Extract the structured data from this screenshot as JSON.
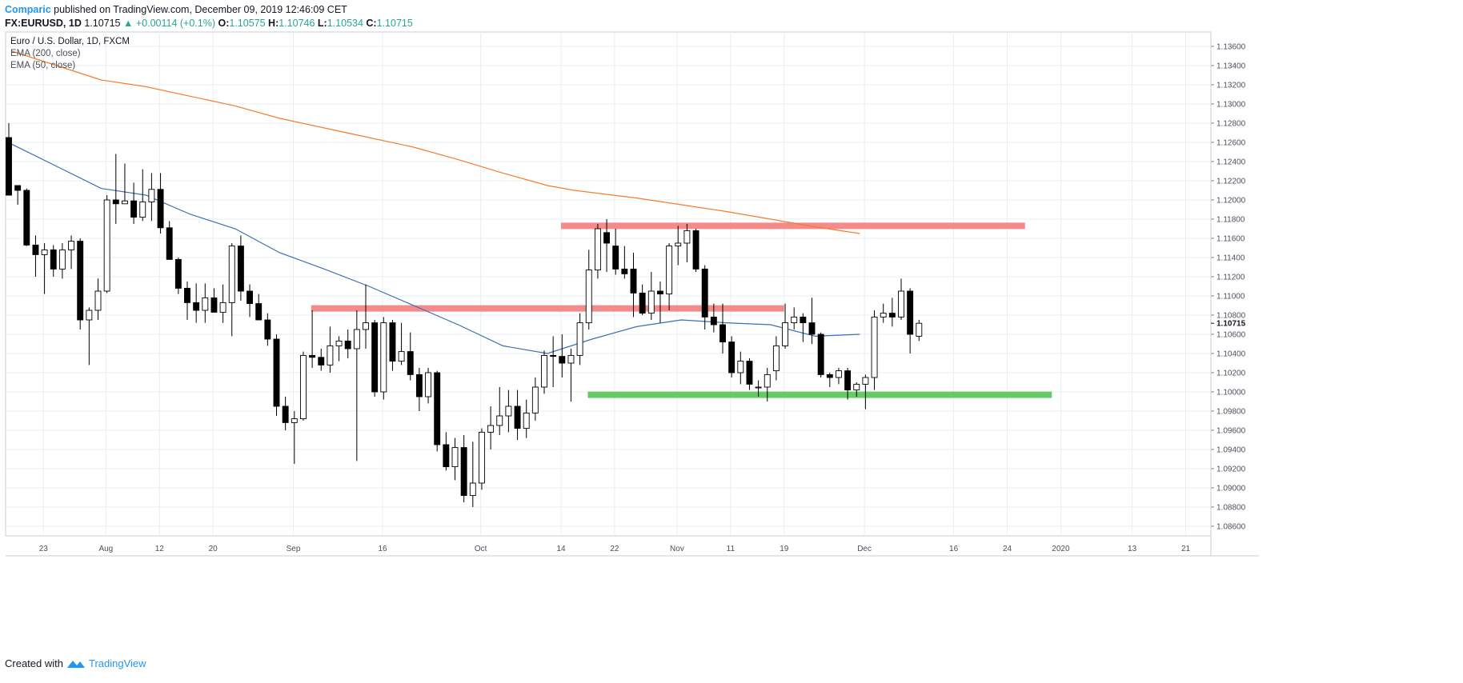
{
  "header": {
    "author": "Comparic",
    "published_text": "published on TradingView.com, December 09, 2019 12:46:09 CET",
    "symbol": "FX:EURUSD, 1D",
    "last": "1.10715",
    "change": "▲ +0.00114 (+0.1%)",
    "o_label": "O:",
    "o_value": "1.10575",
    "h_label": "H:",
    "h_value": "1.10746",
    "l_label": "L:",
    "l_value": "1.10534",
    "c_label": "C:",
    "c_value": "1.10715"
  },
  "legend": {
    "title": "Euro / U.S. Dollar, 1D, FXCM",
    "ema200": "EMA (200, close)",
    "ema50": "EMA (50, close)"
  },
  "footer": {
    "created_with": "Created with",
    "brand": "TradingView"
  },
  "colors": {
    "ema200": "#f57c2b",
    "ema50": "#3a6fb5",
    "resistance": "#f48484",
    "support": "#5ec75e",
    "grid": "#e8eef3",
    "candle_up_fill": "#ffffff",
    "candle_down_fill": "#000000"
  },
  "chart_data": {
    "type": "candlestick",
    "title": "Euro / U.S. Dollar, 1D, FXCM",
    "ylim": [
      1.085,
      1.1375
    ],
    "y_ticks": [
      "1.08600",
      "1.08800",
      "1.09000",
      "1.09200",
      "1.09400",
      "1.09600",
      "1.09800",
      "1.10000",
      "1.10200",
      "1.10400",
      "1.10600",
      "1.10800",
      "1.11000",
      "1.11200",
      "1.11400",
      "1.11600",
      "1.11800",
      "1.12000",
      "1.12200",
      "1.12400",
      "1.12600",
      "1.12800",
      "1.13000",
      "1.13200",
      "1.13400",
      "1.13600"
    ],
    "last_price_label": "1.10715",
    "x_ticks": [
      {
        "label": "23",
        "i": 2
      },
      {
        "label": "Aug",
        "i": 9
      },
      {
        "label": "12",
        "i": 15
      },
      {
        "label": "20",
        "i": 21
      },
      {
        "label": "Sep",
        "i": 30
      },
      {
        "label": "16",
        "i": 40
      },
      {
        "label": "Oct",
        "i": 51
      },
      {
        "label": "14",
        "i": 60
      },
      {
        "label": "22",
        "i": 66
      },
      {
        "label": "Nov",
        "i": 73
      },
      {
        "label": "11",
        "i": 79
      },
      {
        "label": "19",
        "i": 85
      },
      {
        "label": "Dec",
        "i": 94
      },
      {
        "label": "16",
        "i": 104
      },
      {
        "label": "24",
        "i": 110
      },
      {
        "label": "2020",
        "i": 116
      },
      {
        "label": "13",
        "i": 124
      },
      {
        "label": "21",
        "i": 130
      }
    ],
    "candles": [
      [
        1.1265,
        1.128,
        1.1205,
        1.1205
      ],
      [
        1.1215,
        1.1215,
        1.1195,
        1.121
      ],
      [
        1.121,
        1.1212,
        1.1152,
        1.1153
      ],
      [
        1.1153,
        1.1163,
        1.112,
        1.1143
      ],
      [
        1.1143,
        1.1155,
        1.1102,
        1.1148
      ],
      [
        1.1148,
        1.1153,
        1.112,
        1.1128
      ],
      [
        1.1128,
        1.1155,
        1.1118,
        1.1148
      ],
      [
        1.1148,
        1.1163,
        1.1128,
        1.1157
      ],
      [
        1.1157,
        1.116,
        1.1065,
        1.1075
      ],
      [
        1.1075,
        1.1088,
        1.1028,
        1.1085
      ],
      [
        1.1085,
        1.1118,
        1.1075,
        1.1105
      ],
      [
        1.1105,
        1.1205,
        1.1103,
        1.12
      ],
      [
        1.12,
        1.1248,
        1.1175,
        1.1196
      ],
      [
        1.1196,
        1.1238,
        1.1198,
        1.1199
      ],
      [
        1.1199,
        1.1218,
        1.1175,
        1.1182
      ],
      [
        1.1182,
        1.1232,
        1.1178,
        1.1198
      ],
      [
        1.1198,
        1.1228,
        1.1178,
        1.1211
      ],
      [
        1.1211,
        1.1228,
        1.1165,
        1.1171
      ],
      [
        1.1171,
        1.1178,
        1.1138,
        1.1138
      ],
      [
        1.1138,
        1.114,
        1.1102,
        1.1108
      ],
      [
        1.1108,
        1.1115,
        1.1075,
        1.1093
      ],
      [
        1.1093,
        1.1113,
        1.1072,
        1.1085
      ],
      [
        1.1085,
        1.1113,
        1.1072,
        1.1098
      ],
      [
        1.1098,
        1.1108,
        1.1085,
        1.1083
      ],
      [
        1.1083,
        1.1112,
        1.1072,
        1.1093
      ],
      [
        1.1093,
        1.1155,
        1.1058,
        1.1152
      ],
      [
        1.1152,
        1.1163,
        1.1095,
        1.1105
      ],
      [
        1.1105,
        1.1112,
        1.1078,
        1.1092
      ],
      [
        1.1092,
        1.1102,
        1.1075,
        1.1075
      ],
      [
        1.1075,
        1.1082,
        1.1048,
        1.1055
      ],
      [
        1.1055,
        1.106,
        1.0975,
        1.0985
      ],
      [
        1.0985,
        1.0995,
        1.096,
        1.0968
      ],
      [
        1.0968,
        1.098,
        1.0925,
        1.0972
      ],
      [
        1.0972,
        1.1042,
        1.097,
        1.1038
      ],
      [
        1.1038,
        1.1085,
        1.1025,
        1.1036
      ],
      [
        1.1036,
        1.1045,
        1.1022,
        1.1028
      ],
      [
        1.1028,
        1.1068,
        1.102,
        1.1048
      ],
      [
        1.1048,
        1.1058,
        1.1032,
        1.1053
      ],
      [
        1.1053,
        1.1065,
        1.1035,
        1.1045
      ],
      [
        1.1045,
        1.1085,
        1.0928,
        1.1065
      ],
      [
        1.1065,
        1.1112,
        1.1045,
        1.1072
      ],
      [
        1.1072,
        1.1075,
        1.0995,
        1.1
      ],
      [
        1.1,
        1.1078,
        1.0992,
        1.1072
      ],
      [
        1.1072,
        1.1075,
        1.1022,
        1.1032
      ],
      [
        1.1032,
        1.1072,
        1.1028,
        1.1042
      ],
      [
        1.1042,
        1.1062,
        1.1012,
        1.1018
      ],
      [
        1.1018,
        1.1025,
        1.098,
        1.0995
      ],
      [
        1.0995,
        1.1025,
        1.0988,
        1.102
      ],
      [
        1.102,
        1.1022,
        1.0938,
        1.0945
      ],
      [
        1.0945,
        1.0958,
        1.0918,
        1.0922
      ],
      [
        1.0922,
        1.0952,
        1.0908,
        1.0942
      ],
      [
        1.0942,
        1.0955,
        1.0885,
        1.0892
      ],
      [
        1.0892,
        1.0948,
        1.088,
        1.0905
      ],
      [
        1.0905,
        1.0962,
        1.0898,
        1.0958
      ],
      [
        1.0958,
        1.0985,
        1.094,
        1.0965
      ],
      [
        1.0965,
        1.1005,
        1.0955,
        1.0975
      ],
      [
        1.0975,
        1.1002,
        1.0958,
        1.0985
      ],
      [
        1.0985,
        1.1002,
        1.095,
        1.0962
      ],
      [
        1.0962,
        1.0992,
        1.0952,
        1.0978
      ],
      [
        1.0978,
        1.1015,
        1.097,
        1.1005
      ],
      [
        1.1005,
        1.1043,
        1.0998,
        1.1038
      ],
      [
        1.1038,
        1.1058,
        1.1005,
        1.1037
      ],
      [
        1.1037,
        1.106,
        1.1015,
        1.103
      ],
      [
        1.103,
        1.1045,
        1.099,
        1.1038
      ],
      [
        1.1038,
        1.1082,
        1.1028,
        1.1072
      ],
      [
        1.1072,
        1.1148,
        1.1065,
        1.1127
      ],
      [
        1.1127,
        1.1175,
        1.1118,
        1.117
      ],
      [
        1.1166,
        1.118,
        1.1125,
        1.1155
      ],
      [
        1.1152,
        1.117,
        1.1122,
        1.1128
      ],
      [
        1.1128,
        1.1152,
        1.1118,
        1.1123
      ],
      [
        1.1128,
        1.1145,
        1.1078,
        1.1103
      ],
      [
        1.1103,
        1.1112,
        1.108,
        1.1082
      ],
      [
        1.1082,
        1.1125,
        1.1075,
        1.1105
      ],
      [
        1.1105,
        1.1115,
        1.1072,
        1.1102
      ],
      [
        1.1102,
        1.1155,
        1.1085,
        1.1152
      ],
      [
        1.1152,
        1.1173,
        1.1132,
        1.1155
      ],
      [
        1.1155,
        1.1175,
        1.1135,
        1.1168
      ],
      [
        1.1168,
        1.117,
        1.1125,
        1.1128
      ],
      [
        1.1128,
        1.1132,
        1.1065,
        1.1078
      ],
      [
        1.1078,
        1.1092,
        1.1062,
        1.107
      ],
      [
        1.107,
        1.1092,
        1.104,
        1.1052
      ],
      [
        1.1052,
        1.1058,
        1.1015,
        1.102
      ],
      [
        1.102,
        1.1042,
        1.1008,
        1.1032
      ],
      [
        1.1032,
        1.1035,
        1.1002,
        1.1008
      ],
      [
        1.1005,
        1.1012,
        1.0995,
        1.1005
      ],
      [
        1.1005,
        1.1025,
        1.099,
        1.1018
      ],
      [
        1.1022,
        1.1058,
        1.1012,
        1.1048
      ],
      [
        1.1048,
        1.1092,
        1.1045,
        1.1072
      ],
      [
        1.1072,
        1.1088,
        1.1065,
        1.1078
      ],
      [
        1.1078,
        1.1082,
        1.1052,
        1.1072
      ],
      [
        1.1072,
        1.1098,
        1.105,
        1.106
      ],
      [
        1.106,
        1.1062,
        1.1015,
        1.1018
      ],
      [
        1.1018,
        1.102,
        1.1005,
        1.1015
      ],
      [
        1.1015,
        1.1025,
        1.1008,
        1.1022
      ],
      [
        1.1022,
        1.1025,
        1.0992,
        1.1002
      ],
      [
        1.1002,
        1.101,
        1.0995,
        1.1008
      ],
      [
        1.1008,
        1.1018,
        1.0982,
        1.1015
      ],
      [
        1.1015,
        1.1085,
        1.1002,
        1.1078
      ],
      [
        1.1078,
        1.1092,
        1.1072,
        1.1082
      ],
      [
        1.1082,
        1.1098,
        1.1068,
        1.1078
      ],
      [
        1.1078,
        1.1118,
        1.1075,
        1.1105
      ],
      [
        1.1105,
        1.1108,
        1.104,
        1.106
      ],
      [
        1.1058,
        1.1075,
        1.1053,
        1.10715
      ]
    ],
    "series": [
      {
        "name": "EMA (200, close)",
        "color": "#f57c2b",
        "points": [
          [
            0,
            1.1355
          ],
          [
            5,
            1.134
          ],
          [
            10,
            1.1325
          ],
          [
            15,
            1.1318
          ],
          [
            20,
            1.1308
          ],
          [
            25,
            1.1298
          ],
          [
            30,
            1.1285
          ],
          [
            35,
            1.1275
          ],
          [
            40,
            1.1265
          ],
          [
            45,
            1.1255
          ],
          [
            50,
            1.1242
          ],
          [
            55,
            1.1228
          ],
          [
            60,
            1.1215
          ],
          [
            63,
            1.121
          ],
          [
            70,
            1.1202
          ],
          [
            75,
            1.1195
          ],
          [
            80,
            1.1188
          ],
          [
            85,
            1.118
          ],
          [
            90,
            1.1172
          ],
          [
            95,
            1.1165
          ]
        ]
      },
      {
        "name": "EMA (50, close)",
        "color": "#3a6fb5",
        "points": [
          [
            0,
            1.1258
          ],
          [
            5,
            1.1235
          ],
          [
            10,
            1.1212
          ],
          [
            15,
            1.1205
          ],
          [
            20,
            1.1185
          ],
          [
            25,
            1.117
          ],
          [
            30,
            1.1145
          ],
          [
            35,
            1.1128
          ],
          [
            40,
            1.111
          ],
          [
            45,
            1.109
          ],
          [
            50,
            1.107
          ],
          [
            55,
            1.1048
          ],
          [
            60,
            1.104
          ],
          [
            65,
            1.1055
          ],
          [
            70,
            1.1068
          ],
          [
            75,
            1.1075
          ],
          [
            80,
            1.1072
          ],
          [
            85,
            1.107
          ],
          [
            90,
            1.1058
          ],
          [
            95,
            1.106
          ]
        ]
      }
    ],
    "zones": [
      {
        "name": "resistance-upper",
        "level": 1.1173,
        "i_start": 60,
        "i_end": 112,
        "color": "#f48484"
      },
      {
        "name": "resistance-middle",
        "level": 1.1087,
        "i_start": 32,
        "i_end": 85,
        "color": "#f48484"
      },
      {
        "name": "support",
        "level": 1.0997,
        "i_start": 63,
        "i_end": 115,
        "color": "#5ec75e"
      }
    ]
  }
}
